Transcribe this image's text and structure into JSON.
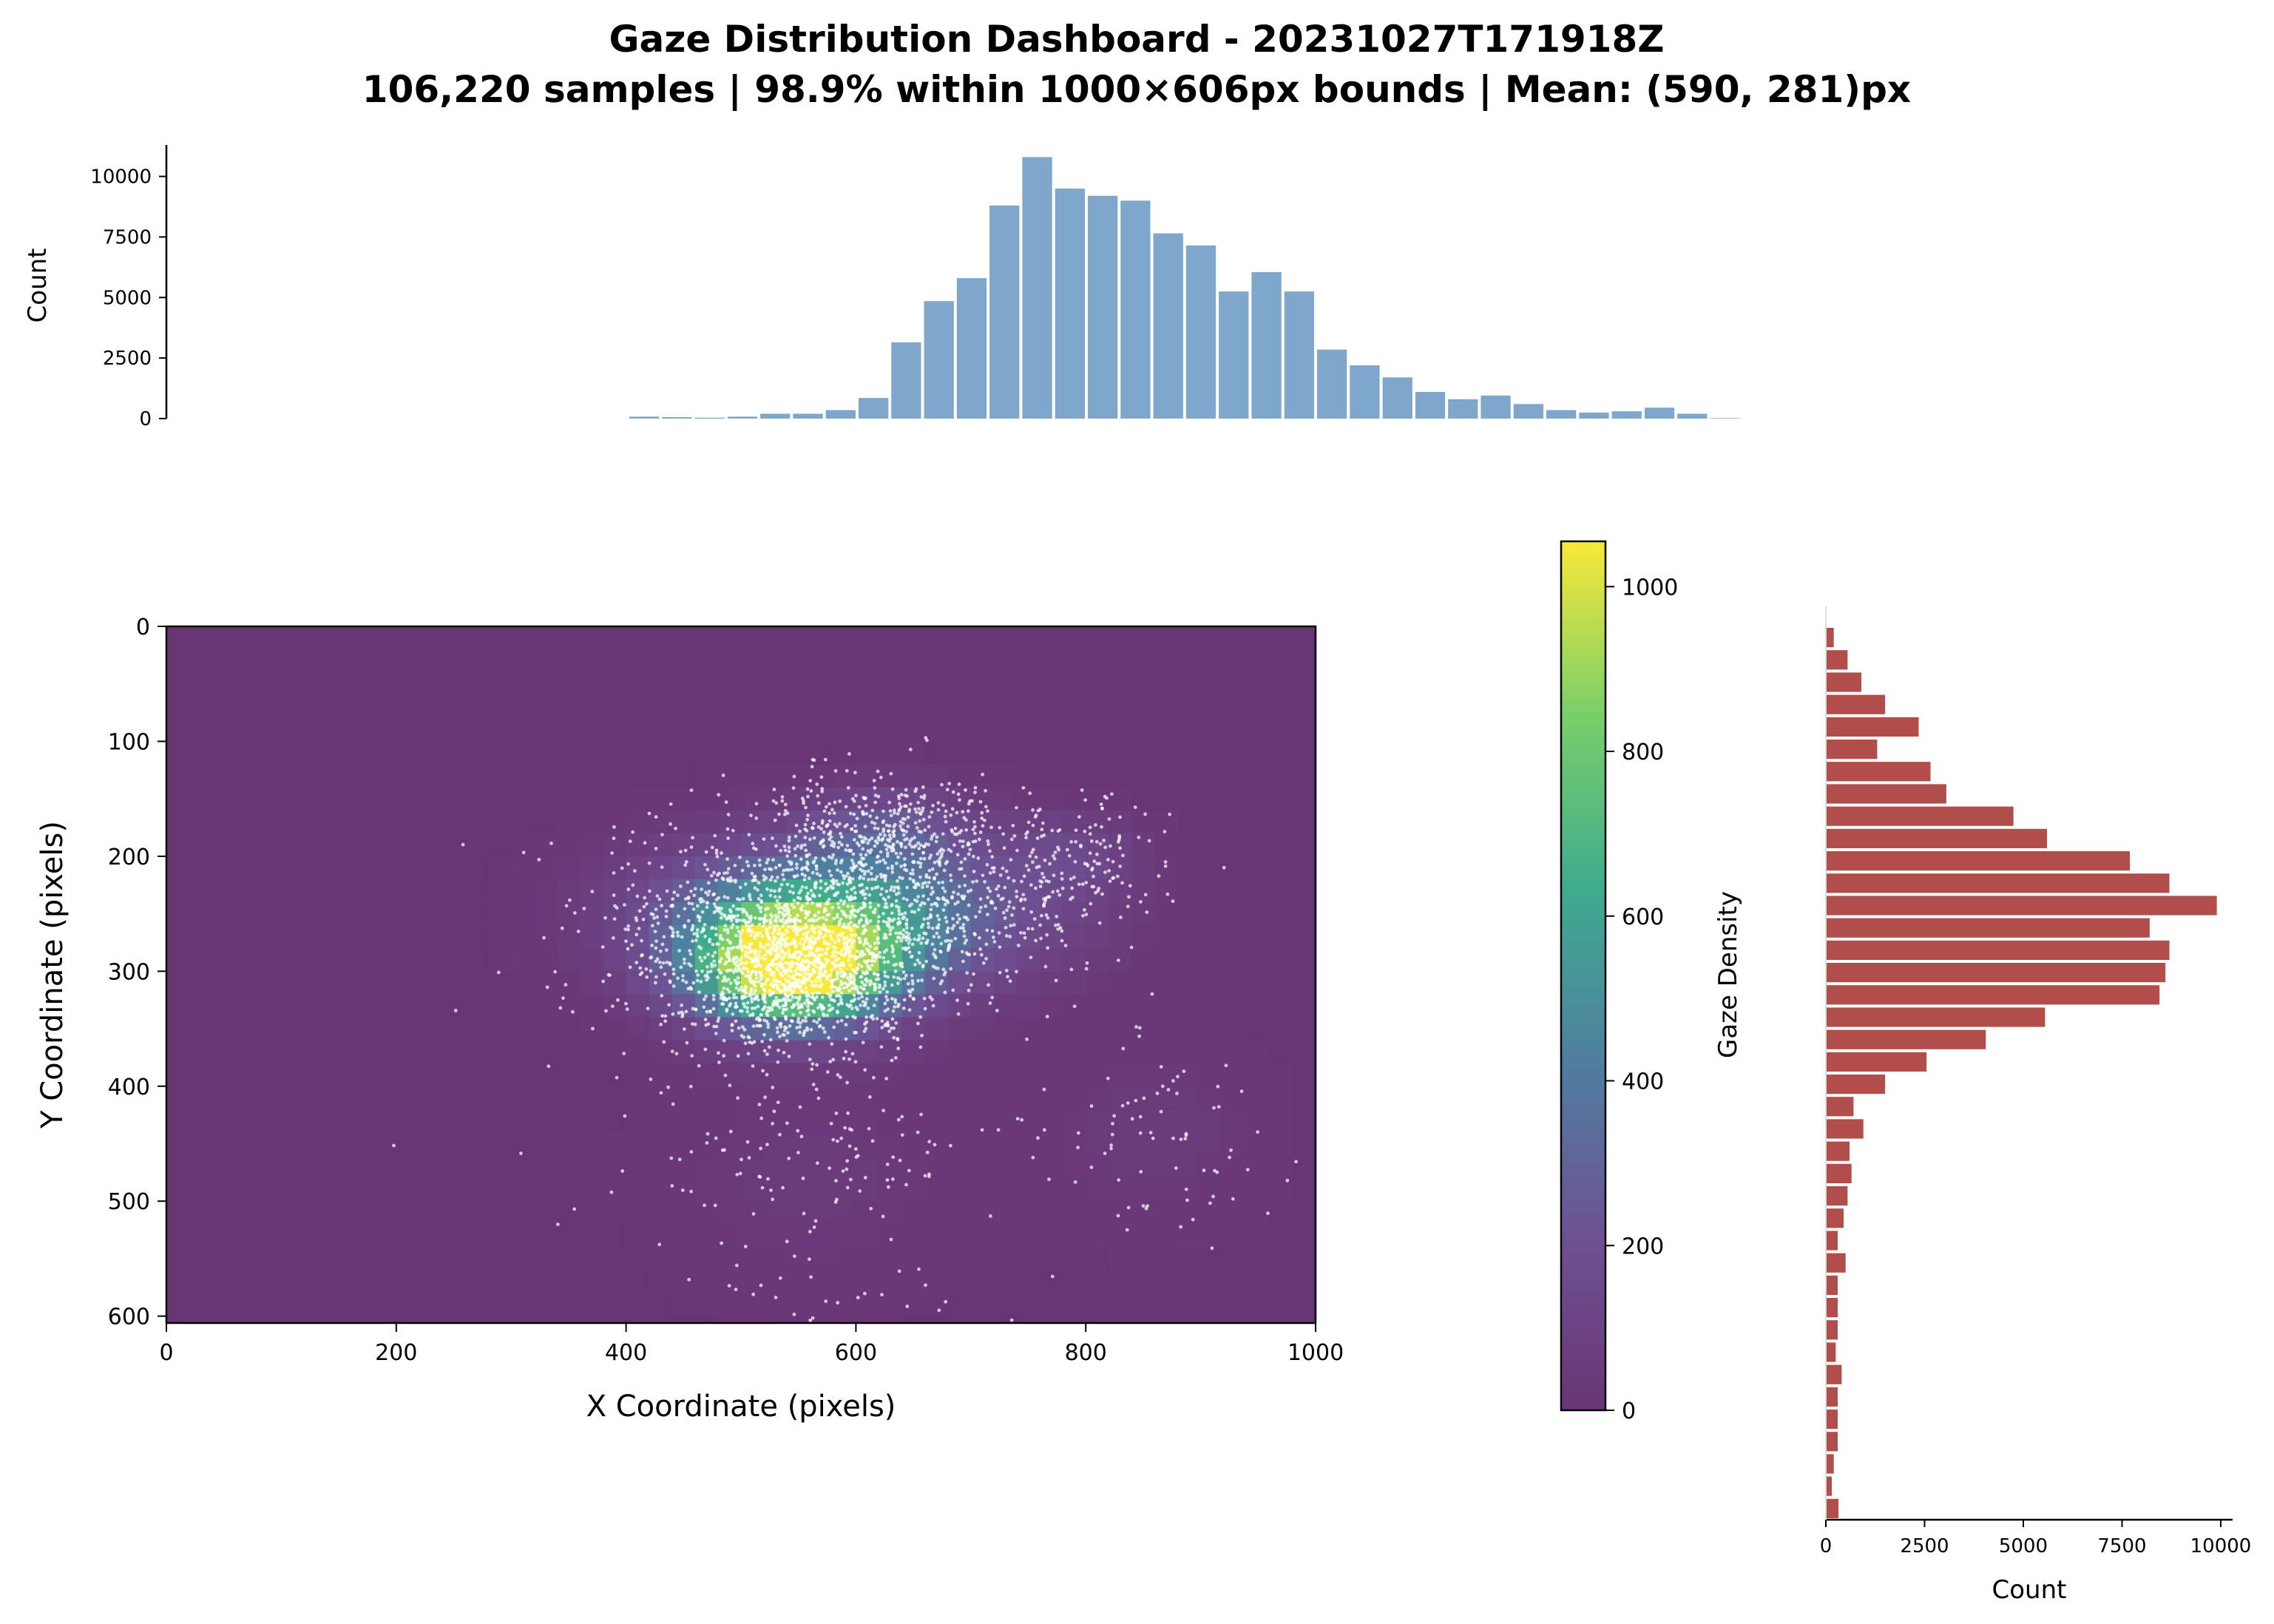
{
  "title_line1": "Gaze Distribution Dashboard - 20231027T171918Z",
  "title_line2": "106,220 samples | 98.9% within 1000×606px bounds | Mean: (590, 281)px",
  "colors": {
    "top_hist": "#7ea7cb",
    "right_hist": "#b14d4b",
    "heat_low": "#683574",
    "heat_high": "#f9e838",
    "points": "#ffffff"
  },
  "chart_data": [
    {
      "type": "bar",
      "name": "x_marginal_histogram",
      "ylabel": "Count",
      "xlim": [
        0,
        1000
      ],
      "ylim": [
        0,
        11300
      ],
      "yticks": [
        0,
        2500,
        5000,
        7500,
        10000
      ],
      "bin_width": 28.5,
      "bin_starts": [
        401.5,
        430,
        458.5,
        487,
        515.5,
        544,
        572.5,
        601,
        629.5,
        658,
        686.5,
        715,
        743.5,
        772,
        800.5,
        829,
        857.5,
        886,
        914.5,
        943,
        971.5,
        1000,
        1028.5,
        1057,
        1085.5,
        1114,
        1142.5,
        1171,
        1199.5,
        1228,
        1256.5,
        1285,
        1313.5,
        1342
      ],
      "values": [
        80,
        60,
        40,
        80,
        200,
        200,
        350,
        850,
        3150,
        4850,
        5800,
        8800,
        10800,
        9500,
        9200,
        9000,
        7650,
        7150,
        5250,
        6050,
        5250,
        2850,
        2200,
        1700,
        1100,
        800,
        950,
        600,
        350,
        250,
        300,
        450,
        200,
        20
      ]
    },
    {
      "type": "heatmap",
      "name": "gaze_density_heatmap",
      "xlabel": "X Coordinate (pixels)",
      "ylabel": "Y Coordinate (pixels)",
      "xlim": [
        0,
        1000
      ],
      "ylim": [
        606,
        0
      ],
      "xticks": [
        0,
        200,
        400,
        600,
        800,
        1000
      ],
      "yticks": [
        0,
        100,
        200,
        300,
        400,
        500,
        600
      ],
      "colorbar": {
        "label": "Gaze Density",
        "range": [
          0,
          1055
        ],
        "ticks": [
          0,
          200,
          400,
          600,
          800,
          1000
        ]
      },
      "density_clusters": [
        {
          "x": 545,
          "y": 295,
          "sx": 60,
          "sy": 35,
          "peak": 1050
        },
        {
          "x": 590,
          "y": 250,
          "sx": 110,
          "sy": 45,
          "peak": 520
        },
        {
          "x": 630,
          "y": 175,
          "sx": 50,
          "sy": 25,
          "peak": 170
        },
        {
          "x": 790,
          "y": 200,
          "sx": 40,
          "sy": 25,
          "peak": 120
        },
        {
          "x": 860,
          "y": 440,
          "sx": 70,
          "sy": 60,
          "peak": 45
        },
        {
          "x": 560,
          "y": 480,
          "sx": 100,
          "sy": 80,
          "peak": 40
        }
      ],
      "scatter_groups": [
        {
          "n": 1400,
          "cx": 545,
          "cy": 295,
          "sx": 55,
          "sy": 35
        },
        {
          "n": 1100,
          "cx": 590,
          "cy": 250,
          "sx": 100,
          "sy": 40
        },
        {
          "n": 380,
          "cx": 630,
          "cy": 175,
          "sx": 50,
          "sy": 25
        },
        {
          "n": 110,
          "cx": 790,
          "cy": 195,
          "sx": 35,
          "sy": 25
        },
        {
          "n": 180,
          "cx": 560,
          "cy": 470,
          "sx": 90,
          "sy": 70
        },
        {
          "n": 70,
          "cx": 870,
          "cy": 440,
          "sx": 50,
          "sy": 50
        },
        {
          "n": 25,
          "cx": 520,
          "cy": 400,
          "sx": 200,
          "sy": 150
        }
      ]
    },
    {
      "type": "bar",
      "name": "y_marginal_histogram",
      "orientation": "horizontal",
      "xlabel": "Count",
      "xlim": [
        0,
        10300
      ],
      "xticks": [
        0,
        2500,
        5000,
        7500,
        10000
      ],
      "bin_height": 19.5,
      "bin_starts": [
        0,
        19.5,
        39,
        58.5,
        78,
        97.5,
        117,
        136.5,
        156,
        175.5,
        195,
        214.5,
        234,
        253.5,
        273,
        292.5,
        312,
        331.5,
        351,
        370.5,
        390,
        409.5,
        429,
        448.5,
        468,
        487.5,
        507,
        526.5,
        546,
        565.5,
        585,
        604.5,
        624,
        643.5,
        663,
        682.5,
        702,
        721.5,
        741,
        760.5
      ],
      "values": [
        200,
        550,
        900,
        1500,
        2350,
        1300,
        2650,
        3050,
        4750,
        5600,
        7700,
        8700,
        9900,
        8200,
        8700,
        8600,
        8450,
        5550,
        4050,
        2550,
        1500,
        700,
        950,
        600,
        650,
        550,
        450,
        300,
        500,
        300,
        300,
        300,
        250,
        400,
        300,
        300,
        300,
        200,
        150,
        320
      ]
    }
  ]
}
